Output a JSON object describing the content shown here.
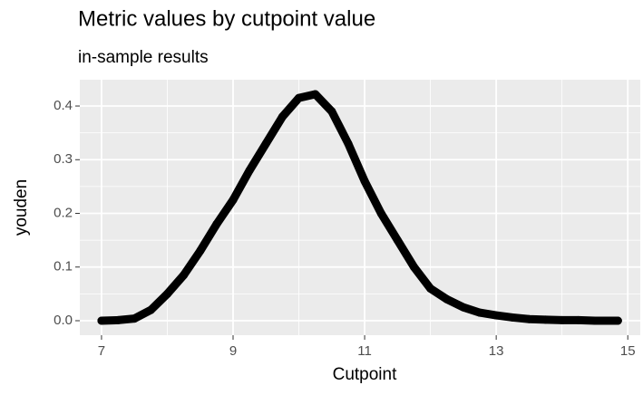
{
  "chart_data": {
    "type": "line",
    "title": "Metric values by cutpoint value",
    "subtitle": "in-sample results",
    "x_label": "Cutpoint",
    "y_label": "youden",
    "x": [
      7.0,
      7.25,
      7.5,
      7.75,
      8.0,
      8.25,
      8.5,
      8.75,
      9.0,
      9.25,
      9.5,
      9.75,
      10.0,
      10.25,
      10.5,
      10.75,
      11.0,
      11.25,
      11.5,
      11.75,
      12.0,
      12.25,
      12.5,
      12.75,
      13.0,
      13.25,
      13.5,
      13.75,
      14.0,
      14.25,
      14.5,
      14.85
    ],
    "series": [
      {
        "name": "youden",
        "color": "#000000",
        "values": [
          0.0,
          0.001,
          0.004,
          0.02,
          0.05,
          0.085,
          0.13,
          0.18,
          0.225,
          0.28,
          0.33,
          0.38,
          0.415,
          0.422,
          0.39,
          0.33,
          0.26,
          0.2,
          0.15,
          0.1,
          0.06,
          0.04,
          0.025,
          0.015,
          0.01,
          0.006,
          0.003,
          0.002,
          0.001,
          0.001,
          0.0,
          0.0
        ]
      }
    ],
    "xlim": [
      6.67,
      15.19
    ],
    "ylim": [
      -0.027,
      0.449
    ],
    "xticks": [
      7,
      9,
      11,
      13,
      15
    ],
    "yticks": [
      {
        "value": 0,
        "label": "0.0"
      },
      0.1,
      0.2,
      0.3,
      0.4
    ],
    "x_minor_ticks": [
      8,
      10,
      12,
      14
    ],
    "y_minor_ticks": [
      0.05,
      0.15,
      0.25,
      0.35
    ],
    "grid": true
  }
}
